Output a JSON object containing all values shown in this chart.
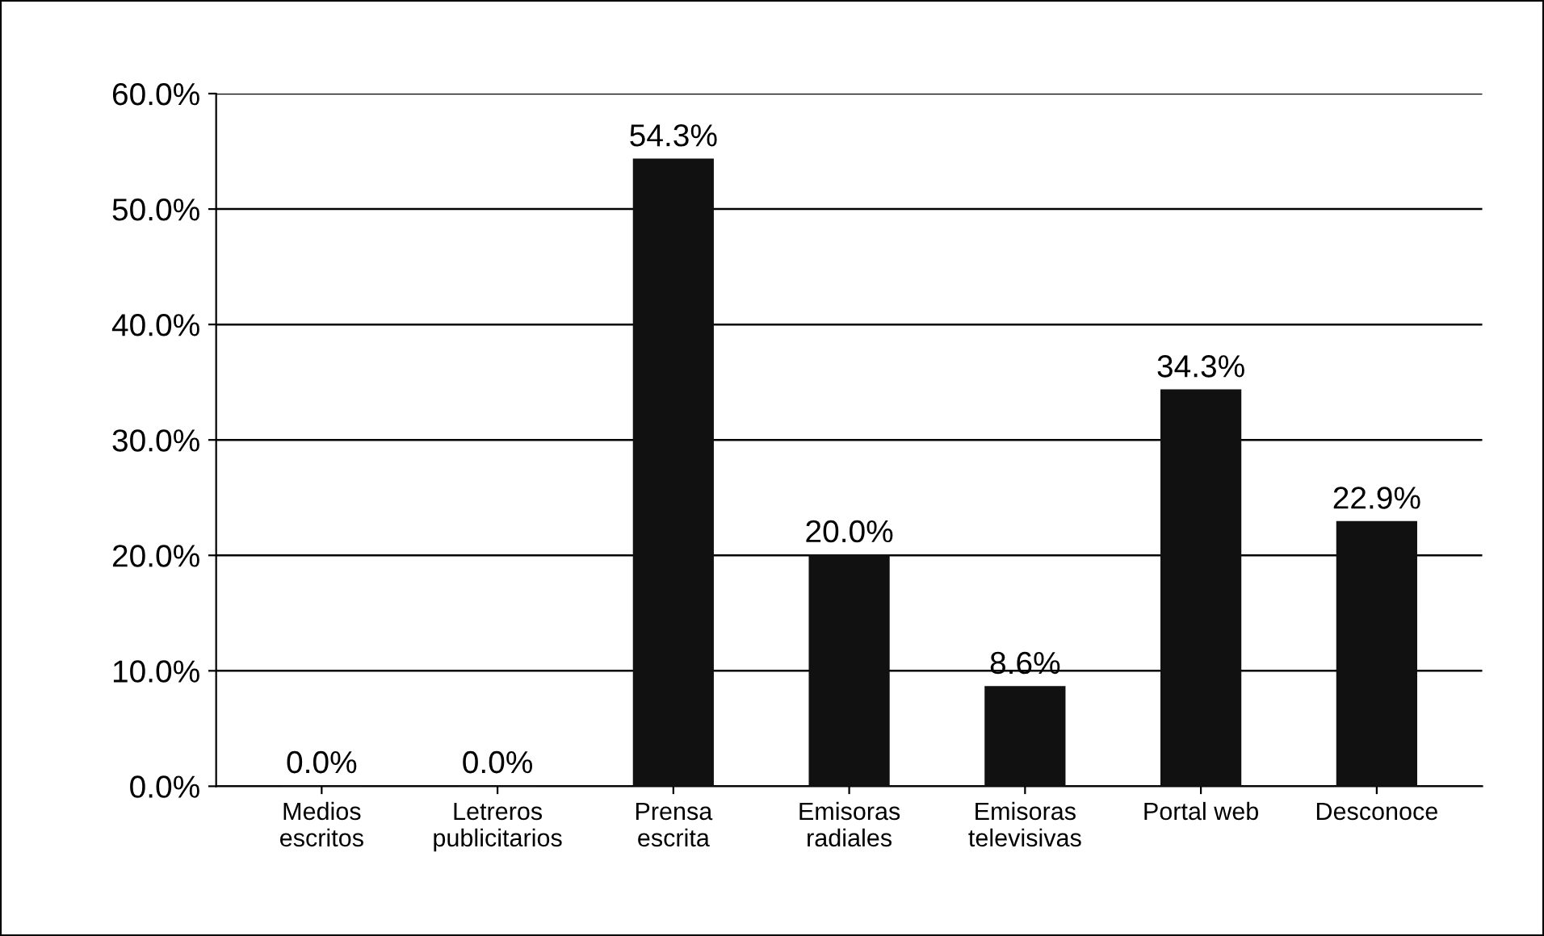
{
  "chart_data": {
    "type": "bar",
    "categories": [
      "Medios escritos",
      "Letreros publicitarios",
      "Prensa escrita",
      "Emisoras radiales",
      "Emisoras televisivas",
      "Portal web",
      "Desconoce"
    ],
    "values": [
      0.0,
      0.0,
      54.3,
      20.0,
      8.6,
      34.3,
      22.9
    ],
    "value_labels": [
      "0.0%",
      "0.0%",
      "54.3%",
      "20.0%",
      "8.6%",
      "34.3%",
      "22.9%"
    ],
    "color": "#111111",
    "ylim": [
      0,
      60
    ],
    "yticks": [
      {
        "value": 0,
        "label": "0.0%"
      },
      {
        "value": 10,
        "label": "10.0%"
      },
      {
        "value": 20,
        "label": "20.0%"
      },
      {
        "value": 30,
        "label": "30.0%"
      },
      {
        "value": 40,
        "label": "40.0%"
      },
      {
        "value": 50,
        "label": "50.0%"
      },
      {
        "value": 60,
        "label": "60.0%"
      }
    ],
    "grid": "y"
  }
}
